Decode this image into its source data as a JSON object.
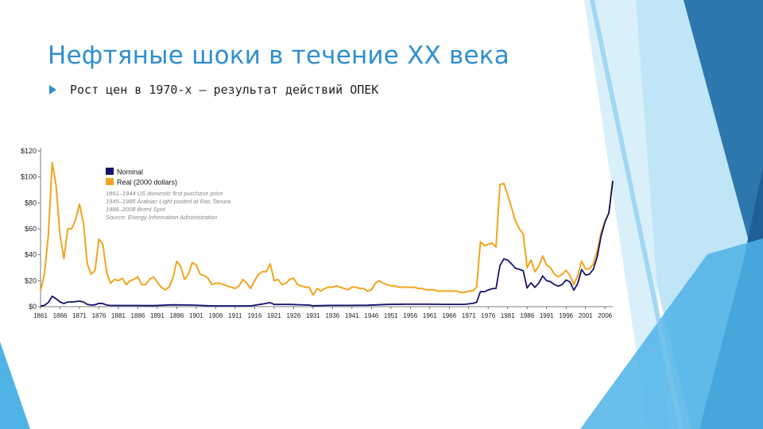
{
  "slide": {
    "title": "Нефтяные шоки в течение XX века",
    "bullet": "Рост цен в 1970-х – результат действий ОПЕК",
    "bullet_icon": "triangle-arrow-icon",
    "colors": {
      "title": "#2f8fcf",
      "accent_light": "#9bd3f1",
      "accent_mid": "#4fb3e6",
      "accent_dark": "#1f5f95"
    }
  },
  "chart_data": {
    "type": "line",
    "title": "",
    "xlabel": "",
    "ylabel": "",
    "ylim": [
      0,
      120
    ],
    "xlim": [
      1861,
      2008
    ],
    "y_ticks": [
      0,
      20,
      40,
      60,
      80,
      100,
      120
    ],
    "y_tick_labels": [
      "$0",
      "$20",
      "$40",
      "$60",
      "$80",
      "$100",
      "$120"
    ],
    "x_ticks": [
      1861,
      1866,
      1871,
      1876,
      1881,
      1886,
      1891,
      1896,
      1901,
      1906,
      1911,
      1916,
      1921,
      1926,
      1931,
      1936,
      1941,
      1946,
      1951,
      1956,
      1961,
      1966,
      1971,
      1976,
      1981,
      1986,
      1991,
      1996,
      2001,
      2006
    ],
    "x_tick_labels": [
      "1861",
      "1866",
      "1871",
      "1876",
      "1881",
      "1886",
      "1891",
      "1896",
      "1901",
      "1906",
      "1911",
      "1916",
      "1921",
      "1926",
      "1931",
      "1936",
      "1941",
      "1946",
      "1951",
      "1956",
      "1961",
      "1966",
      "1971",
      "1976",
      "1981",
      "1986",
      "1991",
      "1996",
      "2001",
      "2006"
    ],
    "grid": false,
    "legend": {
      "placement": "top-left",
      "entries": [
        {
          "name": "Nominal",
          "color": "#14146e"
        },
        {
          "name": "Real (2000 dollars)",
          "color": "#f2a41e"
        }
      ],
      "notes": [
        "1861–1944 US domestic first purchase price",
        "1945–1985 Arabian Light posted at Ras Tanura",
        "1986–2008 Brent Spot",
        "Source: Energy Information Administration"
      ]
    },
    "series": [
      {
        "name": "Nominal",
        "color": "#14146e",
        "x": [
          1861,
          1862,
          1863,
          1864,
          1865,
          1866,
          1867,
          1868,
          1869,
          1870,
          1871,
          1872,
          1873,
          1874,
          1875,
          1876,
          1877,
          1878,
          1879,
          1880,
          1885,
          1890,
          1895,
          1900,
          1905,
          1910,
          1915,
          1918,
          1920,
          1921,
          1925,
          1930,
          1931,
          1935,
          1940,
          1945,
          1950,
          1955,
          1960,
          1965,
          1970,
          1972,
          1973,
          1974,
          1975,
          1976,
          1977,
          1978,
          1979,
          1980,
          1981,
          1982,
          1983,
          1984,
          1985,
          1986,
          1987,
          1988,
          1989,
          1990,
          1991,
          1992,
          1993,
          1994,
          1995,
          1996,
          1997,
          1998,
          1999,
          2000,
          2001,
          2002,
          2003,
          2004,
          2005,
          2006,
          2007,
          2008
        ],
        "y": [
          0.5,
          1,
          3.2,
          8,
          6,
          3.7,
          2.4,
          3.6,
          3.6,
          3.9,
          4.3,
          3.6,
          1.8,
          1.2,
          1.4,
          2.6,
          2.4,
          1.2,
          0.9,
          0.9,
          0.9,
          0.8,
          1.4,
          1.2,
          0.6,
          0.6,
          0.6,
          2,
          3.1,
          1.7,
          1.7,
          1.2,
          0.7,
          1,
          1.0,
          1.1,
          1.7,
          1.9,
          1.9,
          1.8,
          1.8,
          2.5,
          3.3,
          11.6,
          11.5,
          12.8,
          13.9,
          14,
          31.6,
          36.8,
          35.9,
          32.9,
          29.6,
          28.8,
          27.6,
          14.4,
          18.4,
          14.9,
          18.2,
          23.7,
          20,
          19.3,
          17,
          15.8,
          17,
          20.6,
          19.1,
          12.7,
          17.9,
          28.5,
          24.4,
          25,
          28.8,
          38.3,
          54.5,
          65.1,
          72.4,
          97
        ]
      },
      {
        "name": "Real (2000 dollars)",
        "color": "#f2a41e",
        "x": [
          1861,
          1862,
          1863,
          1864,
          1865,
          1866,
          1867,
          1868,
          1869,
          1870,
          1871,
          1872,
          1873,
          1874,
          1875,
          1876,
          1877,
          1878,
          1879,
          1880,
          1881,
          1882,
          1883,
          1884,
          1885,
          1886,
          1887,
          1888,
          1889,
          1890,
          1891,
          1892,
          1893,
          1894,
          1895,
          1896,
          1897,
          1898,
          1899,
          1900,
          1901,
          1902,
          1903,
          1904,
          1905,
          1906,
          1907,
          1908,
          1909,
          1910,
          1911,
          1912,
          1913,
          1914,
          1915,
          1916,
          1917,
          1918,
          1919,
          1920,
          1921,
          1922,
          1923,
          1924,
          1925,
          1926,
          1927,
          1928,
          1929,
          1930,
          1931,
          1932,
          1933,
          1934,
          1935,
          1936,
          1937,
          1938,
          1939,
          1940,
          1941,
          1942,
          1943,
          1944,
          1945,
          1946,
          1947,
          1948,
          1949,
          1950,
          1951,
          1952,
          1953,
          1954,
          1955,
          1956,
          1957,
          1958,
          1959,
          1960,
          1961,
          1962,
          1963,
          1964,
          1965,
          1966,
          1967,
          1968,
          1969,
          1970,
          1971,
          1972,
          1973,
          1974,
          1975,
          1976,
          1977,
          1978,
          1979,
          1980,
          1981,
          1982,
          1983,
          1984,
          1985,
          1986,
          1987,
          1988,
          1989,
          1990,
          1991,
          1992,
          1993,
          1994,
          1995,
          1996,
          1997,
          1998,
          1999,
          2000,
          2001,
          2002,
          2003,
          2004,
          2005,
          2006,
          2007,
          2008
        ],
        "y": [
          12,
          25,
          55,
          111,
          93,
          55,
          37,
          60,
          60,
          67,
          79,
          65,
          33,
          25,
          28,
          52,
          48,
          26,
          18,
          21,
          20,
          22,
          17,
          20,
          21,
          23,
          17,
          17,
          21,
          23,
          19,
          15,
          13,
          15,
          22,
          35,
          31,
          21,
          25,
          34,
          32,
          25,
          24,
          22,
          17,
          18,
          18,
          17,
          16,
          15,
          14,
          16,
          21,
          18,
          14,
          20,
          25,
          27,
          27,
          33,
          20,
          21,
          17,
          18,
          21,
          22,
          17,
          16,
          15,
          15,
          9,
          14,
          12,
          14,
          15,
          15,
          16,
          15,
          14,
          13,
          15,
          15,
          14,
          14,
          12,
          13,
          18,
          20,
          18,
          17,
          16,
          16,
          15,
          15,
          15,
          15,
          15,
          14,
          14,
          13,
          13,
          13,
          12,
          12,
          12,
          12,
          12,
          12,
          11,
          11,
          12,
          12,
          15,
          50,
          47,
          48,
          49,
          46,
          94,
          95,
          86,
          76,
          66,
          60,
          56,
          30,
          36,
          27,
          31,
          39,
          32,
          30,
          25,
          23,
          25,
          28,
          24,
          17,
          24,
          35,
          29,
          29,
          33,
          43,
          57,
          66,
          72,
          97
        ]
      }
    ]
  }
}
